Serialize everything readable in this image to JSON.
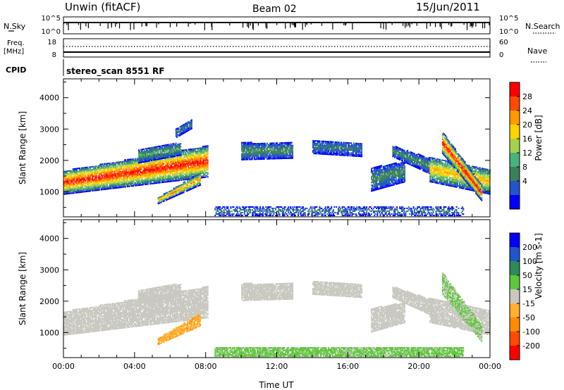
{
  "header": {
    "station": "Unwin (fitACF)",
    "beam": "Beam 02",
    "date": "15/Jun/2011"
  },
  "top_panels": {
    "nsky_label": "N.Sky",
    "nsky_ticks": [
      "10^5",
      "10^0"
    ],
    "nsearch_label": "N.Search",
    "nsearch_ticks": [
      "10^5",
      "10^0"
    ],
    "freq_label": "Freq.",
    "freq_unit": "[MHz]",
    "freq_ticks": [
      "18",
      "8"
    ],
    "nave_label": "Nave",
    "nave_ticks": [
      "60",
      "0"
    ],
    "cpid_label": "CPID",
    "cpid_value": "stereo_scan 8551 RF"
  },
  "colors": {
    "power": [
      "#0000ff",
      "#2255c8",
      "#3a7f5a",
      "#4ab07c",
      "#a6d14a",
      "#ffd200",
      "#ff9a00",
      "#ff4800",
      "#ff0000"
    ],
    "velocity": [
      "#ff0000",
      "#ff4a00",
      "#ff8c00",
      "#ffb030",
      "#c8c8c0",
      "#5ec73a",
      "#2e8a5a",
      "#2255c8",
      "#0000ff"
    ]
  },
  "chart_data": [
    {
      "type": "heatmap",
      "xlabel": "",
      "ylabel": "Slant Range [km]",
      "yticks": [
        "1000",
        "2000",
        "3000",
        "4000"
      ],
      "ylim": [
        200,
        4600
      ],
      "xlim": [
        0,
        24
      ],
      "colorbar": {
        "label": "Power [dB]",
        "ticks": [
          "4",
          "8",
          "12",
          "16",
          "20",
          "24",
          "28"
        ],
        "range": [
          0,
          32
        ]
      },
      "regions": [
        {
          "t0": 0.0,
          "t1": 8.1,
          "r0_start": 900,
          "r1_start": 1650,
          "r0_end": 1450,
          "r1_end": 2450,
          "peak": 30
        },
        {
          "t0": 5.3,
          "t1": 7.7,
          "r0_start": 600,
          "r1_start": 800,
          "r0_end": 1200,
          "r1_end": 1600,
          "peak": 24
        },
        {
          "t0": 4.2,
          "t1": 6.6,
          "r0_start": 1900,
          "r1_start": 2350,
          "r0_end": 2150,
          "r1_end": 2550,
          "peak": 12
        },
        {
          "t0": 6.3,
          "t1": 7.2,
          "r0_start": 2700,
          "r1_start": 3000,
          "r0_end": 3000,
          "r1_end": 3300,
          "peak": 8
        },
        {
          "t0": 10.0,
          "t1": 12.9,
          "r0_start": 2000,
          "r1_start": 2550,
          "r0_end": 2050,
          "r1_end": 2550,
          "peak": 10
        },
        {
          "t0": 14.0,
          "t1": 16.8,
          "r0_start": 2200,
          "r1_start": 2650,
          "r0_end": 2100,
          "r1_end": 2550,
          "peak": 8
        },
        {
          "t0": 17.3,
          "t1": 19.2,
          "r0_start": 1000,
          "r1_start": 1750,
          "r0_end": 1300,
          "r1_end": 1950,
          "peak": 10
        },
        {
          "t0": 18.5,
          "t1": 20.6,
          "r0_start": 2100,
          "r1_start": 2450,
          "r0_end": 1550,
          "r1_end": 2050,
          "peak": 10
        },
        {
          "t0": 20.6,
          "t1": 24.0,
          "r0_start": 1300,
          "r1_start": 2100,
          "r0_end": 900,
          "r1_end": 1700,
          "peak": 22
        },
        {
          "t0": 21.3,
          "t1": 23.5,
          "r0_start": 2200,
          "r1_start": 2900,
          "r0_end": 700,
          "r1_end": 1200,
          "peak": 30
        },
        {
          "t0": 8.5,
          "t1": 22.5,
          "r0_start": 220,
          "r1_start": 500,
          "r0_end": 220,
          "r1_end": 500,
          "peak": 8
        }
      ]
    },
    {
      "type": "heatmap",
      "xlabel": "Time UT",
      "ylabel": "Slant Range [km]",
      "xticks": [
        "00:00",
        "04:00",
        "08:00",
        "12:00",
        "16:00",
        "20:00",
        "00:00"
      ],
      "yticks": [
        "1000",
        "2000",
        "3000",
        "4000"
      ],
      "ylim": [
        200,
        4600
      ],
      "xlim": [
        0,
        24
      ],
      "colorbar": {
        "label": "Velocity [m s-1]",
        "ticks": [
          "200",
          "100",
          "50",
          "15",
          "-15",
          "-50",
          "-100",
          "-200"
        ],
        "range": [
          -250,
          250
        ]
      },
      "regions": [
        {
          "t0": 0.0,
          "t1": 8.1,
          "r0_start": 900,
          "r1_start": 1650,
          "r0_end": 1450,
          "r1_end": 2450,
          "value": 0
        },
        {
          "t0": 5.3,
          "t1": 7.7,
          "r0_start": 600,
          "r1_start": 800,
          "r0_end": 1200,
          "r1_end": 1600,
          "value": -70
        },
        {
          "t0": 4.2,
          "t1": 6.6,
          "r0_start": 1900,
          "r1_start": 2350,
          "r0_end": 2150,
          "r1_end": 2550,
          "value": 0
        },
        {
          "t0": 10.0,
          "t1": 12.9,
          "r0_start": 2000,
          "r1_start": 2550,
          "r0_end": 2050,
          "r1_end": 2550,
          "value": 0
        },
        {
          "t0": 14.0,
          "t1": 16.8,
          "r0_start": 2200,
          "r1_start": 2650,
          "r0_end": 2100,
          "r1_end": 2550,
          "value": 0
        },
        {
          "t0": 17.3,
          "t1": 19.2,
          "r0_start": 1000,
          "r1_start": 1750,
          "r0_end": 1300,
          "r1_end": 1950,
          "value": 0
        },
        {
          "t0": 18.5,
          "t1": 20.6,
          "r0_start": 2100,
          "r1_start": 2450,
          "r0_end": 1550,
          "r1_end": 2050,
          "value": 0
        },
        {
          "t0": 20.6,
          "t1": 24.0,
          "r0_start": 1300,
          "r1_start": 2100,
          "r0_end": 900,
          "r1_end": 1700,
          "value": 0
        },
        {
          "t0": 21.3,
          "t1": 23.5,
          "r0_start": 2200,
          "r1_start": 2900,
          "r0_end": 700,
          "r1_end": 1200,
          "value": 30
        },
        {
          "t0": 8.5,
          "t1": 22.5,
          "r0_start": 220,
          "r1_start": 500,
          "r0_end": 220,
          "r1_end": 500,
          "value": 40
        }
      ]
    }
  ]
}
